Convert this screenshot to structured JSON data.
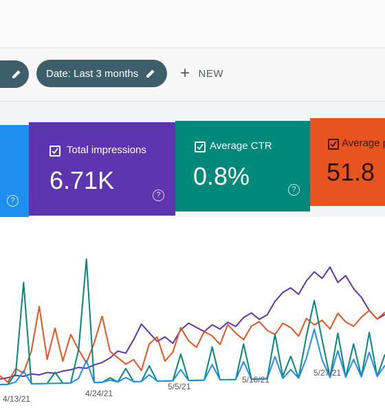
{
  "filters": {
    "date_chip_label": "Date: Last 3 months",
    "new_label": "NEW"
  },
  "cards": [
    {
      "id": "clicks",
      "label": "",
      "value": "",
      "color": "#1f8ef1"
    },
    {
      "id": "impressions",
      "label": "Total impressions",
      "value": "6.71K",
      "color": "#5e35b1"
    },
    {
      "id": "ctr",
      "label": "Average CTR",
      "value": "0.8%",
      "color": "#00897b"
    },
    {
      "id": "position",
      "label": "Average po",
      "value": "51.8",
      "color": "#e8541f"
    }
  ],
  "chart_data": {
    "type": "line",
    "x_tick_labels": [
      "4/13/21",
      "4/24/21",
      "5/5/21",
      "5/16/21",
      "5/27/21"
    ],
    "grid": false,
    "legend": "none",
    "series": [
      {
        "color": "#5e35b1",
        "values": [
          5,
          6,
          8,
          7,
          9,
          8,
          10,
          9,
          11,
          12,
          14,
          13,
          16,
          18,
          22,
          28,
          26,
          38,
          52,
          44,
          36,
          40,
          34,
          46,
          52,
          48,
          44,
          50,
          46,
          52,
          48,
          56,
          60,
          54,
          58,
          70,
          78,
          82,
          76,
          88,
          96,
          90,
          100,
          86,
          92,
          80,
          72,
          60,
          52,
          56
        ]
      },
      {
        "color": "#e8541f",
        "values": [
          8,
          2,
          14,
          10,
          30,
          70,
          22,
          50,
          20,
          44,
          30,
          18,
          36,
          60,
          28,
          22,
          16,
          20,
          10,
          34,
          40,
          18,
          26,
          48,
          36,
          30,
          44,
          40,
          32,
          50,
          42,
          36,
          48,
          52,
          44,
          40,
          50,
          46,
          38,
          54,
          48,
          52,
          44,
          58,
          50,
          46,
          54,
          60,
          52,
          58
        ]
      },
      {
        "color": "#00897b",
        "values": [
          0,
          0,
          10,
          92,
          0,
          0,
          0,
          10,
          0,
          0,
          30,
          112,
          0,
          0,
          4,
          0,
          12,
          0,
          0,
          14,
          0,
          0,
          0,
          24,
          0,
          0,
          0,
          30,
          0,
          0,
          0,
          32,
          0,
          0,
          0,
          40,
          2,
          20,
          0,
          38,
          70,
          34,
          0,
          40,
          0,
          30,
          0,
          40,
          0,
          20
        ]
      },
      {
        "color": "#1f8ef1",
        "values": [
          0,
          0,
          2,
          12,
          0,
          0,
          0,
          0,
          0,
          0,
          4,
          20,
          0,
          0,
          2,
          0,
          4,
          0,
          0,
          6,
          0,
          0,
          0,
          10,
          0,
          0,
          0,
          14,
          0,
          0,
          0,
          16,
          0,
          0,
          0,
          20,
          0,
          8,
          0,
          18,
          44,
          16,
          0,
          24,
          0,
          16,
          0,
          22,
          0,
          10
        ]
      }
    ]
  }
}
